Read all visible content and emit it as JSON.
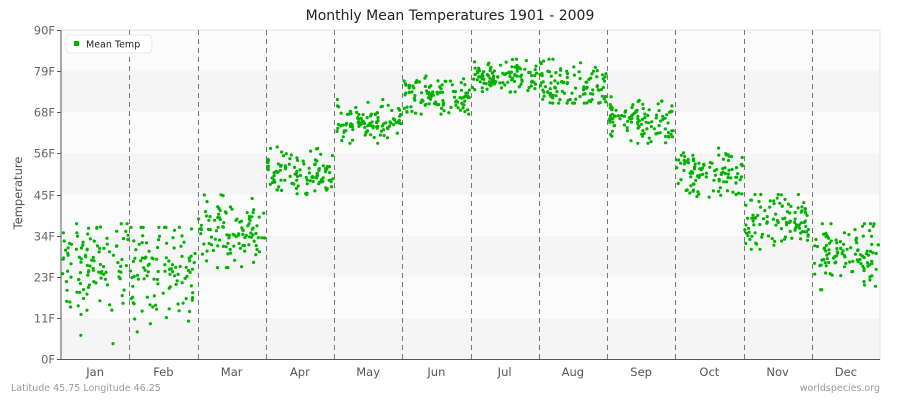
{
  "chart_data": {
    "type": "scatter",
    "title": "Monthly Mean Temperatures 1901 - 2009",
    "xlabel": "",
    "ylabel": "Temperature",
    "ylim": [
      0,
      90
    ],
    "y_ticks": [
      "0F",
      "11F",
      "23F",
      "34F",
      "45F",
      "56F",
      "68F",
      "79F",
      "90F"
    ],
    "y_tick_values": [
      0,
      11.25,
      22.5,
      33.75,
      45,
      56.25,
      67.5,
      78.75,
      90
    ],
    "categories": [
      "Jan",
      "Feb",
      "Mar",
      "Apr",
      "May",
      "Jun",
      "Jul",
      "Aug",
      "Sep",
      "Oct",
      "Nov",
      "Dec"
    ],
    "legend": {
      "position": "top-left",
      "entries": [
        "Mean Temp"
      ]
    },
    "grid": {
      "horizontal_bands": true,
      "vertical_dashed_month_separators": true
    },
    "series": [
      {
        "name": "Mean Temp",
        "color": "#00b300",
        "points_per_month": 109,
        "monthly_summary": [
          {
            "month": "Jan",
            "min": 4,
            "mean": 25,
            "max": 37
          },
          {
            "month": "Feb",
            "min": 5,
            "mean": 24,
            "max": 36
          },
          {
            "month": "Mar",
            "min": 25,
            "mean": 35,
            "max": 45
          },
          {
            "month": "Apr",
            "min": 45,
            "mean": 51,
            "max": 58
          },
          {
            "month": "May",
            "min": 59,
            "mean": 64,
            "max": 71
          },
          {
            "month": "Jun",
            "min": 67,
            "mean": 72,
            "max": 79
          },
          {
            "month": "Jul",
            "min": 73,
            "mean": 77,
            "max": 82
          },
          {
            "month": "Aug",
            "min": 70,
            "mean": 75,
            "max": 82
          },
          {
            "month": "Sep",
            "min": 59,
            "mean": 65,
            "max": 72
          },
          {
            "month": "Oct",
            "min": 43,
            "mean": 51,
            "max": 58
          },
          {
            "month": "Nov",
            "min": 30,
            "mean": 38,
            "max": 45
          },
          {
            "month": "Dec",
            "min": 18,
            "mean": 29,
            "max": 37
          }
        ]
      }
    ]
  },
  "footer": {
    "location": "Latitude 45.75 Longitude 46.25",
    "source": "worldspecies.org"
  }
}
